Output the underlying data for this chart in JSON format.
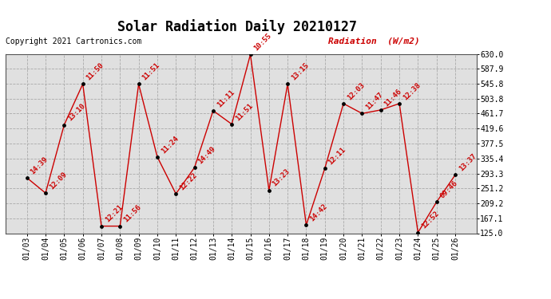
{
  "title": "Solar Radiation Daily 20210127",
  "copyright": "Copyright 2021 Cartronics.com",
  "ylabel": "Radiation  (W/m2)",
  "background_color": "#ffffff",
  "plot_bg_color": "#e0e0e0",
  "line_color": "#cc0000",
  "marker_color": "#000000",
  "ylim_min": 125.0,
  "ylim_max": 630.0,
  "ytick_values": [
    125.0,
    167.1,
    209.2,
    251.2,
    293.3,
    335.4,
    377.5,
    419.6,
    461.7,
    503.8,
    545.8,
    587.9,
    630.0
  ],
  "dates": [
    "01/03",
    "01/04",
    "01/05",
    "01/06",
    "01/07",
    "01/08",
    "01/09",
    "01/10",
    "01/11",
    "01/12",
    "01/13",
    "01/14",
    "01/15",
    "01/16",
    "01/17",
    "01/18",
    "01/19",
    "01/20",
    "01/21",
    "01/22",
    "01/23",
    "01/24",
    "01/25",
    "01/26"
  ],
  "values": [
    281,
    238,
    430,
    545,
    145,
    145,
    545,
    340,
    236,
    310,
    470,
    432,
    628,
    246,
    545,
    148,
    308,
    490,
    462,
    472,
    490,
    127,
    213,
    289
  ],
  "time_labels": [
    "14:39",
    "12:09",
    "13:10",
    "11:50",
    "12:21",
    "11:56",
    "11:51",
    "11:24",
    "12:22",
    "14:49",
    "11:11",
    "11:51",
    "10:55",
    "13:23",
    "13:15",
    "14:42",
    "12:11",
    "12:03",
    "11:47",
    "11:46",
    "12:38",
    "12:52",
    "09:46",
    "13:37"
  ],
  "title_fontsize": 12,
  "label_fontsize": 6.5,
  "axis_fontsize": 7,
  "copyright_fontsize": 7,
  "ylabel_fontsize": 8
}
